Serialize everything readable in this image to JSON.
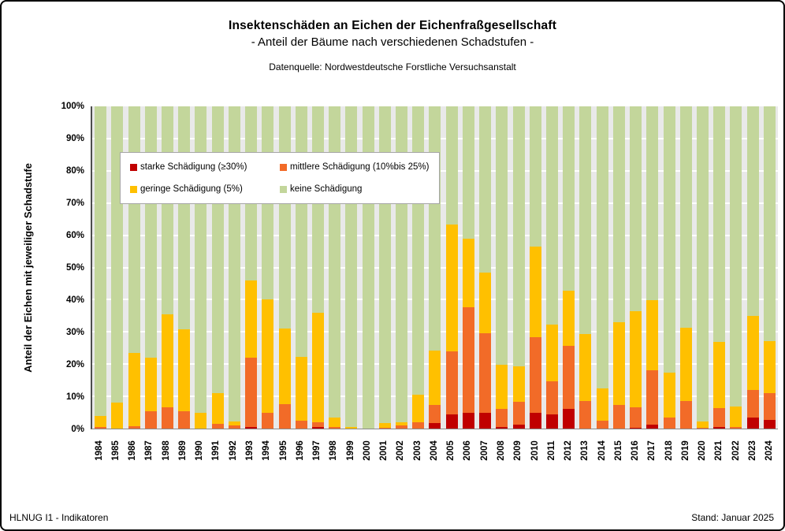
{
  "header": {
    "title": "Insektenschäden an Eichen der Eichenfraßgesellschaft",
    "subtitle": "- Anteil der Bäume nach verschiedenen Schadstufen -",
    "source": "Datenquelle: Nordwestdeutsche Forstliche Versuchsanstalt"
  },
  "footer": {
    "left": "HLNUG  I1 - Indikatoren",
    "right": "Stand:  Januar 2025"
  },
  "chart_data": {
    "type": "bar",
    "stacked": true,
    "stacked_to": 100,
    "unit": "%",
    "grid": true,
    "legend_position": "upper-left-overlay",
    "ylabel": "Anteil der Eichen mit jeweiliger Schadstufe",
    "ylim": [
      0,
      100
    ],
    "yticks": [
      "0%",
      "10%",
      "20%",
      "30%",
      "40%",
      "50%",
      "60%",
      "70%",
      "80%",
      "90%",
      "100%"
    ],
    "categories": [
      1984,
      1985,
      1986,
      1987,
      1988,
      1989,
      1990,
      1991,
      1992,
      1993,
      1994,
      1995,
      1996,
      1997,
      1998,
      1999,
      2000,
      2001,
      2002,
      2003,
      2004,
      2005,
      2006,
      2007,
      2008,
      2009,
      2010,
      2011,
      2012,
      2013,
      2014,
      2015,
      2016,
      2017,
      2018,
      2019,
      2020,
      2021,
      2022,
      2023,
      2024
    ],
    "series": [
      {
        "name": "starke Schädigung  (≥30%)",
        "color": "#C00000",
        "values": [
          0,
          0,
          0,
          0,
          0,
          0,
          0,
          0,
          0,
          0.5,
          0,
          0,
          0,
          0.5,
          0,
          0,
          0,
          0,
          0,
          0,
          1.7,
          4.4,
          5,
          5,
          0.5,
          1.2,
          4.8,
          4.5,
          6,
          0,
          0,
          0,
          0.3,
          1.2,
          0,
          0,
          0,
          0.5,
          0,
          3.5,
          2.8
        ]
      },
      {
        "name": "mittlere Schädigung (10%bis 25%)",
        "color": "#F26B28",
        "values": [
          0.5,
          0,
          0.7,
          5.5,
          6.5,
          5.3,
          0,
          1.5,
          1,
          21.5,
          5,
          7.5,
          2.5,
          1.5,
          0.5,
          0,
          0,
          0.3,
          0.9,
          2,
          5.7,
          19.5,
          32.7,
          24.6,
          5.7,
          7,
          23.6,
          10.2,
          19.7,
          8.5,
          2.5,
          7.3,
          6.3,
          16.8,
          3.5,
          8.5,
          0.3,
          5.9,
          0.5,
          8.6,
          8.1
        ]
      },
      {
        "name": "geringe Schädigung (5%)",
        "color": "#FFC000",
        "values": [
          3.5,
          8,
          22.8,
          16.5,
          29,
          25.5,
          5,
          9.5,
          1.2,
          24,
          35,
          23.5,
          19.8,
          34,
          3,
          0.5,
          0,
          1.5,
          1.1,
          8.5,
          16.9,
          39.4,
          21.3,
          18.7,
          13.6,
          11.2,
          28,
          17.5,
          17.1,
          20.8,
          10,
          25.6,
          29.9,
          21.9,
          13.9,
          22.7,
          1.9,
          20.5,
          6.3,
          22.9,
          16.2
        ]
      },
      {
        "name": "keine Schädigung",
        "color": "#C3D69B",
        "values": [
          96,
          92,
          76.5,
          78,
          64.5,
          69.2,
          95,
          89,
          97.8,
          54,
          60,
          69,
          77.7,
          64,
          96.5,
          99.5,
          100,
          98.2,
          98,
          89.5,
          75.7,
          36.7,
          41,
          51.7,
          80.2,
          80.6,
          43.6,
          67.8,
          57.2,
          70.7,
          87.5,
          67.1,
          63.5,
          60.1,
          82.6,
          68.8,
          97.8,
          73.1,
          93.2,
          65,
          72.9
        ]
      }
    ]
  }
}
